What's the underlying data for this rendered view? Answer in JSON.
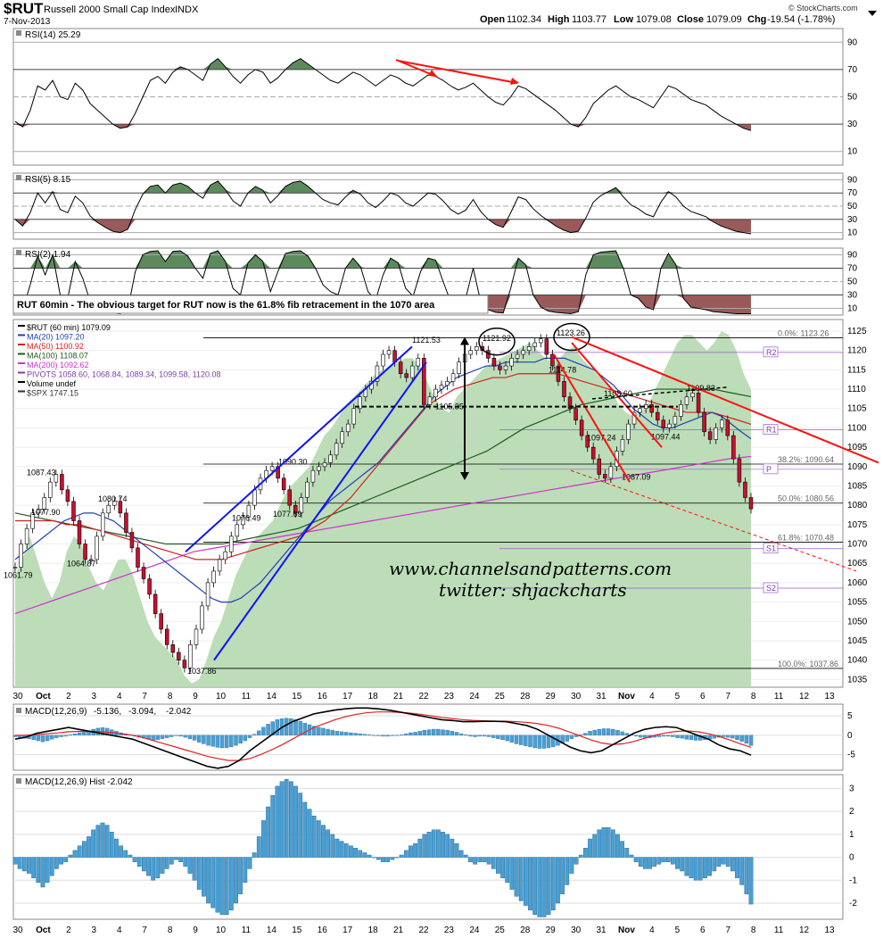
{
  "header": {
    "symbol": "$RUT",
    "name": "Russell 2000 Small Cap Index",
    "exchange": "INDX",
    "date": "7-Nov-2013",
    "open_label": "Open",
    "open": "1102.34",
    "high_label": "High",
    "high": "1103.77",
    "low_label": "Low",
    "low": "1079.08",
    "close_label": "Close",
    "close": "1079.09",
    "chg_label": "Chg",
    "chg": "-19.54 (-1.78%)",
    "logo": "© StockCharts.com"
  },
  "colors": {
    "up": "#ffffff",
    "down": "#c8102e",
    "spx_fill": "#b5d9b0",
    "ma20": "#1f3fb5",
    "ma50": "#d22020",
    "ma100": "#1f5a1f",
    "ma200": "#d030d0",
    "overbought": "#5c8a5c",
    "oversold": "#9a5a5a",
    "macd": "#000000",
    "signal": "#e02020",
    "hist": "#4a9fd4",
    "annot_blue": "#1010ff",
    "annot_red": "#ff1010"
  },
  "chart_data": [
    {
      "type": "line",
      "title": "RSI(14) 25.29",
      "ylim": [
        0,
        100
      ],
      "yticks": [
        "90",
        "70",
        "50",
        "30",
        "10"
      ],
      "values": [
        32,
        28,
        40,
        58,
        55,
        62,
        50,
        48,
        60,
        55,
        45,
        40,
        35,
        30,
        27,
        28,
        38,
        50,
        62,
        65,
        60,
        68,
        72,
        70,
        66,
        62,
        74,
        78,
        72,
        65,
        60,
        66,
        70,
        68,
        60,
        64,
        70,
        75,
        78,
        74,
        70,
        66,
        62,
        60,
        64,
        68,
        66,
        62,
        58,
        62,
        66,
        64,
        60,
        58,
        62,
        66,
        65,
        62,
        58,
        55,
        57,
        60,
        55,
        50,
        46,
        44,
        50,
        58,
        56,
        52,
        48,
        44,
        40,
        35,
        30,
        28,
        35,
        45,
        50,
        55,
        58,
        54,
        50,
        48,
        45,
        42,
        50,
        58,
        56,
        52,
        48,
        46,
        44,
        40,
        36,
        33,
        30,
        27,
        25.29
      ]
    },
    {
      "type": "line",
      "title": "RSI(5) 8.15",
      "ylim": [
        0,
        100
      ],
      "yticks": [
        "90",
        "70",
        "50",
        "30",
        "10"
      ],
      "values": [
        30,
        20,
        40,
        70,
        55,
        72,
        45,
        40,
        65,
        55,
        35,
        25,
        18,
        12,
        10,
        15,
        45,
        68,
        80,
        82,
        70,
        82,
        85,
        80,
        70,
        62,
        82,
        88,
        75,
        58,
        50,
        70,
        80,
        74,
        55,
        66,
        80,
        86,
        88,
        80,
        70,
        60,
        55,
        52,
        64,
        74,
        68,
        55,
        48,
        58,
        70,
        66,
        55,
        50,
        60,
        70,
        68,
        58,
        45,
        38,
        44,
        60,
        42,
        30,
        22,
        18,
        40,
        64,
        60,
        46,
        36,
        28,
        20,
        14,
        10,
        12,
        32,
        56,
        66,
        72,
        78,
        64,
        52,
        46,
        38,
        34,
        56,
        72,
        64,
        50,
        42,
        38,
        34,
        26,
        20,
        16,
        12,
        10,
        8.15
      ]
    },
    {
      "type": "line",
      "title": "RSI(2) 1.94",
      "ylim": [
        0,
        100
      ],
      "yticks": [
        "90",
        "70",
        "50",
        "30",
        "10"
      ],
      "values": [
        20,
        8,
        45,
        88,
        60,
        90,
        30,
        25,
        80,
        55,
        20,
        10,
        5,
        3,
        2,
        8,
        65,
        90,
        95,
        96,
        80,
        95,
        96,
        88,
        70,
        55,
        92,
        96,
        80,
        40,
        30,
        78,
        90,
        80,
        35,
        65,
        92,
        95,
        96,
        88,
        70,
        45,
        35,
        30,
        70,
        85,
        72,
        35,
        22,
        60,
        85,
        78,
        40,
        28,
        65,
        85,
        82,
        50,
        20,
        10,
        25,
        70,
        20,
        8,
        4,
        3,
        40,
        85,
        75,
        30,
        12,
        6,
        4,
        3,
        2,
        5,
        60,
        90,
        94,
        95,
        96,
        70,
        30,
        25,
        12,
        8,
        70,
        92,
        75,
        25,
        12,
        10,
        8,
        5,
        4,
        3,
        2,
        2,
        1.94
      ]
    },
    {
      "type": "line",
      "title": "RUT 60min - The obvious target for RUT now is the 61.8% fib retracement in the 1070 area",
      "series_labels": [
        "$RUT (60 min) 1079.09",
        "MA(20) 1097.20",
        "MA(50) 1100.92",
        "MA(100) 1108.07",
        "MA(200) 1092.62",
        "PIVOTS 1058.60, 1068.84, 1089.34, 1099.58, 1120.08",
        "Volume undef",
        "$SPX 1747.15"
      ],
      "ylim": [
        1033,
        1128
      ],
      "yticks": [
        "1125",
        "1120",
        "1115",
        "1110",
        "1105",
        "1100",
        "1095",
        "1090",
        "1085",
        "1080",
        "1075",
        "1070",
        "1065",
        "1060",
        "1055",
        "1050",
        "1045",
        "1040",
        "1035"
      ],
      "x_ticks": [
        "30",
        "Oct",
        "2",
        "3",
        "4",
        "7",
        "8",
        "9",
        "10",
        "11",
        "14",
        "15",
        "16",
        "17",
        "18",
        "21",
        "22",
        "23",
        "24",
        "25",
        "28",
        "29",
        "30",
        "31",
        "Nov",
        "4",
        "5",
        "6",
        "7",
        "8",
        "11",
        "12",
        "13"
      ],
      "close": [
        1064,
        1070,
        1074,
        1078,
        1079,
        1082,
        1086,
        1088,
        1084,
        1081,
        1076,
        1070,
        1066,
        1066,
        1072,
        1078,
        1080,
        1081,
        1078,
        1073,
        1069,
        1064,
        1061,
        1057,
        1052,
        1048,
        1044,
        1042,
        1040,
        1038,
        1044,
        1048,
        1054,
        1060,
        1063,
        1066,
        1068,
        1072,
        1075,
        1077,
        1080,
        1084,
        1087,
        1089,
        1090,
        1087,
        1084,
        1080,
        1078,
        1082,
        1086,
        1089,
        1090,
        1091,
        1093,
        1096,
        1099,
        1101,
        1105,
        1108,
        1110,
        1112,
        1116,
        1119,
        1120,
        1117,
        1114,
        1113,
        1116,
        1118,
        1106,
        1108,
        1110,
        1111,
        1112,
        1114,
        1117,
        1119,
        1120,
        1121,
        1120,
        1118,
        1116,
        1115,
        1116,
        1118,
        1119,
        1120,
        1121,
        1122,
        1123,
        1119,
        1116,
        1112,
        1108,
        1105,
        1102,
        1098,
        1095,
        1092,
        1088,
        1087,
        1090,
        1094,
        1097,
        1101,
        1104,
        1105,
        1106,
        1104,
        1102,
        1100,
        1101,
        1103,
        1106,
        1108,
        1109,
        1104,
        1099,
        1097,
        1100,
        1102,
        1098,
        1092,
        1086,
        1082,
        1079.09
      ],
      "spx": [
        1062,
        1066,
        1072,
        1066,
        1060,
        1056,
        1060,
        1068,
        1072,
        1070,
        1064,
        1060,
        1058,
        1062,
        1066,
        1066,
        1062,
        1056,
        1050,
        1046,
        1044,
        1042,
        1040,
        1036,
        1034,
        1035,
        1040,
        1046,
        1050,
        1056,
        1062,
        1066,
        1070,
        1072,
        1074,
        1076,
        1080,
        1084,
        1086,
        1088,
        1090,
        1094,
        1098,
        1100,
        1103,
        1106,
        1108,
        1110,
        1112,
        1114,
        1115,
        1116,
        1117,
        1118,
        1118,
        1116,
        1112,
        1108,
        1105,
        1104,
        1108,
        1110,
        1112,
        1114,
        1116,
        1117,
        1118,
        1119,
        1120,
        1121,
        1122,
        1120,
        1118,
        1117,
        1118,
        1120,
        1121,
        1118,
        1116,
        1114,
        1112,
        1110,
        1106,
        1104,
        1103,
        1104,
        1106,
        1110,
        1114,
        1118,
        1122,
        1124,
        1124,
        1122,
        1120,
        1122,
        1125,
        1124,
        1120,
        1114,
        1110
      ],
      "ma20": [
        1066,
        1068,
        1070,
        1072,
        1074,
        1076,
        1077,
        1078,
        1078,
        1077,
        1076,
        1074,
        1072,
        1070,
        1068,
        1066,
        1064,
        1062,
        1060,
        1058,
        1056,
        1055,
        1055,
        1056,
        1058,
        1060,
        1063,
        1066,
        1069,
        1072,
        1075,
        1078,
        1081,
        1083,
        1085,
        1087,
        1089,
        1091,
        1094,
        1097,
        1100,
        1103,
        1106,
        1109,
        1111,
        1113,
        1114,
        1115,
        1116,
        1116,
        1117,
        1117,
        1117,
        1117,
        1118,
        1118,
        1118,
        1117,
        1116,
        1115,
        1113,
        1111,
        1108,
        1105,
        1103,
        1101,
        1100,
        1100,
        1101,
        1102,
        1103,
        1104,
        1103,
        1101,
        1099,
        1097.2
      ],
      "ma50": [
        1076,
        1076,
        1076,
        1076,
        1075,
        1075,
        1074,
        1073,
        1072,
        1071,
        1070,
        1069,
        1068,
        1067,
        1066,
        1066,
        1066,
        1067,
        1068,
        1069,
        1070,
        1071,
        1072,
        1074,
        1076,
        1079,
        1082,
        1086,
        1090,
        1094,
        1098,
        1102,
        1106,
        1108,
        1110,
        1111,
        1112,
        1113,
        1113,
        1114,
        1114,
        1114,
        1114,
        1113,
        1112,
        1111,
        1110,
        1109,
        1108,
        1107,
        1106,
        1105,
        1104,
        1104,
        1104,
        1103,
        1102,
        1100.92
      ],
      "ma100": [
        1078,
        1077,
        1076,
        1075,
        1074,
        1073,
        1072,
        1071,
        1070,
        1070,
        1070,
        1070,
        1071,
        1072,
        1073,
        1074,
        1076,
        1078,
        1080,
        1082,
        1084,
        1086,
        1088,
        1090,
        1092,
        1094,
        1097,
        1100,
        1102,
        1104,
        1106,
        1107,
        1108,
        1109,
        1110,
        1110,
        1110,
        1110,
        1109,
        1108.07
      ],
      "ma200": [
        1052,
        1054,
        1056,
        1058,
        1060,
        1062,
        1064,
        1066,
        1068,
        1069,
        1070,
        1071,
        1072,
        1073,
        1074,
        1075,
        1076,
        1077,
        1078,
        1079,
        1080,
        1081,
        1082,
        1083,
        1084,
        1085,
        1086,
        1087,
        1088,
        1089,
        1090,
        1091,
        1092,
        1092.62
      ],
      "fib_levels": [
        {
          "pct": "0.0%",
          "value": 1123.26,
          "label": "0.0%: 1123.26"
        },
        {
          "pct": "38.2%",
          "value": 1090.64,
          "label": "38.2%: 1090.64"
        },
        {
          "pct": "50.0%",
          "value": 1080.56,
          "label": "50.0%: 1080.56"
        },
        {
          "pct": "61.8%",
          "value": 1070.48,
          "label": "61.8%: 1070.48"
        },
        {
          "pct": "100.0%",
          "value": 1037.86,
          "label": "100.0%: 1037.86"
        }
      ],
      "pivot_labels": [
        "R2",
        "R1",
        "P",
        "S1",
        "S2"
      ],
      "price_labels": [
        "1087.43",
        "1080.74",
        "1077.90",
        "1064.87",
        "1061.79",
        "1037.86",
        "1076.49",
        "1077.69",
        "1090.30",
        "1121.53",
        "1121.92",
        "1123.26",
        "1105.35",
        "1114.78",
        "1108.60",
        "1097.24",
        "1097.44",
        "1087.09",
        "1109.83"
      ],
      "watermark": [
        "www.channelsandpatterns.com",
        "twitter: shjackcharts"
      ]
    },
    {
      "type": "line",
      "title": "MACD(12,26,9) -5.136, -3.094, -2.042",
      "series_labels": [
        "-5.136",
        "-3.094",
        "-2.042"
      ],
      "yticks": [
        "5",
        "0",
        "-5"
      ],
      "macd": [
        -1,
        -0.5,
        0.5,
        1,
        1.5,
        2,
        1.5,
        1,
        0.5,
        0,
        -0.5,
        -1,
        -2,
        -3,
        -4,
        -5,
        -6,
        -7,
        -8,
        -8.5,
        -8,
        -6.5,
        -4,
        -2,
        0,
        2,
        3.5,
        4.5,
        5.5,
        6,
        6.5,
        6.8,
        7,
        7,
        6.8,
        6.5,
        6,
        5.5,
        5,
        4.5,
        4,
        3.8,
        3.5,
        3.5,
        3.6,
        3.6,
        3.5,
        3,
        2.5,
        1.5,
        0,
        -1.5,
        -3,
        -4,
        -4.5,
        -4,
        -2.5,
        -1,
        0.5,
        1.5,
        2,
        2.2,
        2,
        1,
        0,
        -1,
        -2.5,
        -3.5,
        -4,
        -5.136
      ],
      "signal": [
        0,
        0,
        0.2,
        0.4,
        0.6,
        0.9,
        1,
        1,
        0.9,
        0.7,
        0.4,
        0,
        -0.6,
        -1.4,
        -2.2,
        -3,
        -3.8,
        -4.6,
        -5.4,
        -6,
        -6.5,
        -6.5,
        -6,
        -5,
        -3.8,
        -2.5,
        -1,
        0.5,
        2,
        3,
        4,
        4.8,
        5.4,
        5.8,
        6,
        6,
        5.9,
        5.7,
        5.4,
        5,
        4.6,
        4.3,
        4,
        3.8,
        3.7,
        3.6,
        3.6,
        3.5,
        3.3,
        3,
        2.5,
        1.8,
        0.8,
        -0.2,
        -1.2,
        -2,
        -2.4,
        -2.2,
        -1.6,
        -0.8,
        0,
        0.6,
        1,
        1.1,
        0.9,
        0.4,
        -0.3,
        -1.2,
        -2.2,
        -3.094
      ]
    },
    {
      "type": "bar",
      "title": "MACD(12,26,9) Hist -2.042",
      "yticks": [
        "3",
        "2",
        "1",
        "0",
        "-1",
        "-2"
      ],
      "values": [
        -0.3,
        -0.5,
        -0.6,
        -0.7,
        -0.9,
        -1.1,
        -1.3,
        -1.1,
        -0.8,
        -0.5,
        -0.3,
        -0.2,
        0.1,
        0.3,
        0.5,
        0.7,
        0.9,
        1.2,
        1.4,
        1.5,
        1.4,
        1.1,
        0.8,
        0.5,
        0.3,
        0.1,
        -0.2,
        -0.4,
        -0.6,
        -0.8,
        -1,
        -0.9,
        -0.7,
        -0.5,
        -0.3,
        -0.1,
        -0.2,
        -0.4,
        -0.7,
        -1,
        -1.4,
        -1.7,
        -2.0,
        -2.2,
        -2.4,
        -2.5,
        -2.5,
        -2.3,
        -2.0,
        -1.6,
        -1.1,
        -0.5,
        0.2,
        0.9,
        1.6,
        2.2,
        2.7,
        3.1,
        3.3,
        3.4,
        3.3,
        3.1,
        2.8,
        2.4,
        2.1,
        1.8,
        1.6,
        1.4,
        1.2,
        1.0,
        0.8,
        0.7,
        0.6,
        0.5,
        0.4,
        0.3,
        0.2,
        0.1,
        0.0,
        -0.1,
        -0.2,
        -0.2,
        -0.1,
        0.0,
        0.1,
        0.3,
        0.5,
        0.6,
        0.8,
        1.0,
        1.1,
        1.2,
        1.2,
        1.1,
        1.0,
        0.8,
        0.6,
        0.3,
        0.1,
        -0.2,
        -0.3,
        -0.2,
        -0.2,
        -0.3,
        -0.5,
        -0.7,
        -0.9,
        -1.1,
        -1.4,
        -1.7,
        -1.9,
        -2.1,
        -2.3,
        -2.5,
        -2.6,
        -2.6,
        -2.5,
        -2.3,
        -2.0,
        -1.6,
        -1.2,
        -0.7,
        -0.3,
        0.1,
        0.4,
        0.8,
        1.0,
        1.2,
        1.3,
        1.3,
        1.2,
        1.0,
        0.7,
        0.4,
        0.1,
        -0.2,
        -0.4,
        -0.5,
        -0.5,
        -0.4,
        -0.3,
        -0.2,
        -0.2,
        -0.3,
        -0.5,
        -0.6,
        -0.8,
        -0.9,
        -1.0,
        -1.0,
        -0.9,
        -0.8,
        -0.6,
        -0.4,
        -0.3,
        -0.4,
        -0.6,
        -0.9,
        -1.2,
        -1.6,
        -2.042
      ]
    }
  ]
}
